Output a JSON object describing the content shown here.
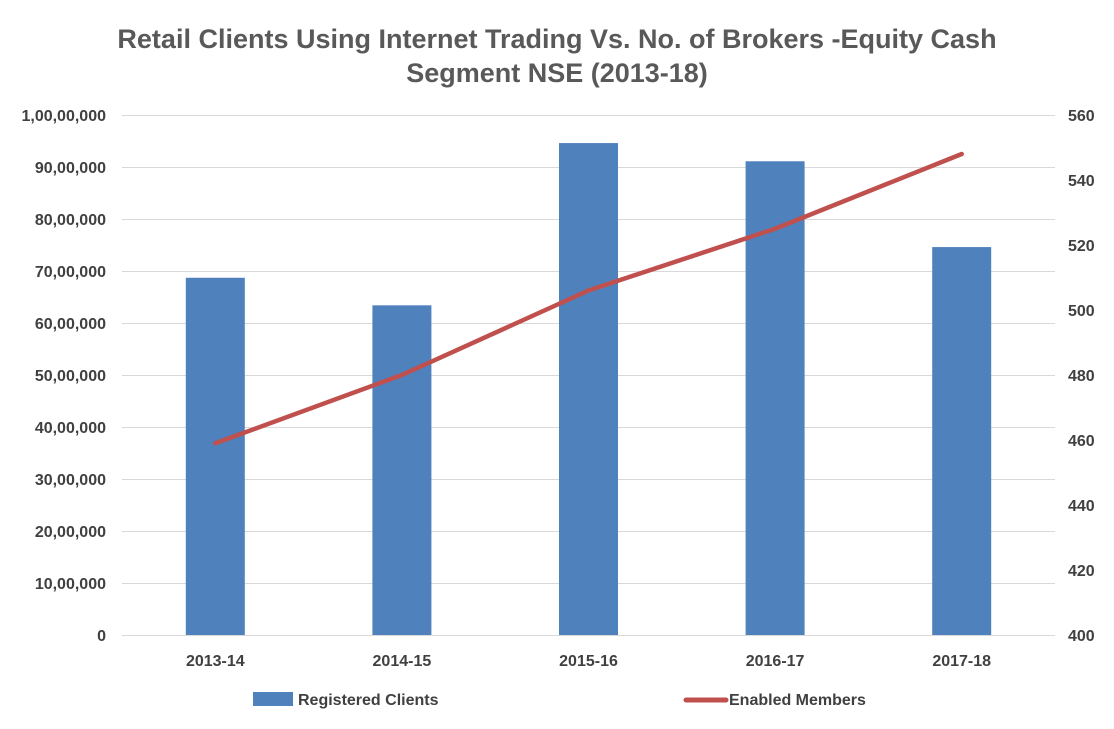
{
  "chart_data": {
    "type": "bar",
    "title_lines": [
      "Retail Clients Using Internet Trading Vs. No. of Brokers -Equity Cash",
      "Segment NSE (2013-18)"
    ],
    "categories": [
      "2013-14",
      "2014-15",
      "2015-16",
      "2016-17",
      "2017-18"
    ],
    "series": [
      {
        "name": "Registered Clients",
        "kind": "bar",
        "axis": "left",
        "color": "#4f81bd",
        "values": [
          6870000,
          6340000,
          9460000,
          9110000,
          7460000
        ]
      },
      {
        "name": "Enabled Members",
        "kind": "line",
        "axis": "right",
        "color": "#c0504d",
        "values": [
          459,
          480,
          506,
          525,
          548
        ]
      }
    ],
    "y_left": {
      "ylim": [
        0,
        10000000
      ],
      "ticks": [
        {
          "value": 0,
          "label": "0"
        },
        {
          "value": 1000000,
          "label": "10,00,000"
        },
        {
          "value": 2000000,
          "label": "20,00,000"
        },
        {
          "value": 3000000,
          "label": "30,00,000"
        },
        {
          "value": 4000000,
          "label": "40,00,000"
        },
        {
          "value": 5000000,
          "label": "50,00,000"
        },
        {
          "value": 6000000,
          "label": "60,00,000"
        },
        {
          "value": 7000000,
          "label": "70,00,000"
        },
        {
          "value": 8000000,
          "label": "80,00,000"
        },
        {
          "value": 9000000,
          "label": "90,00,000"
        },
        {
          "value": 10000000,
          "label": "1,00,00,000"
        }
      ]
    },
    "y_right": {
      "ylim": [
        400,
        560
      ],
      "ticks": [
        {
          "value": 400,
          "label": "400"
        },
        {
          "value": 420,
          "label": "420"
        },
        {
          "value": 440,
          "label": "440"
        },
        {
          "value": 460,
          "label": "460"
        },
        {
          "value": 480,
          "label": "480"
        },
        {
          "value": 500,
          "label": "500"
        },
        {
          "value": 520,
          "label": "520"
        },
        {
          "value": 540,
          "label": "540"
        },
        {
          "value": 560,
          "label": "560"
        }
      ]
    },
    "grid": true,
    "legend_position": "bottom"
  }
}
